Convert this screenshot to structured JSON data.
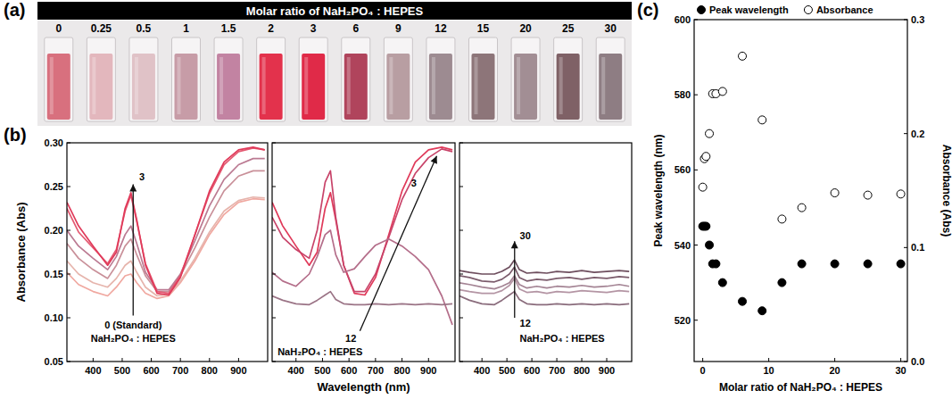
{
  "chart_data": [
    {
      "type": "swatch",
      "panel": "(a)",
      "title": "Molar ratio of NaH₂PO₄ : HEPES",
      "categories": [
        "0",
        "0.25",
        "0.5",
        "1",
        "1.5",
        "2",
        "3",
        "6",
        "9",
        "12",
        "15",
        "20",
        "25",
        "30"
      ],
      "colors": [
        "#d8707e",
        "#e3b7bd",
        "#e0c2c7",
        "#c79ca7",
        "#c283a2",
        "#e3324c",
        "#e02a48",
        "#b0445c",
        "#b89ea2",
        "#9d8b91",
        "#8d7579",
        "#a28e94",
        "#7f6166",
        "#8e7d83"
      ]
    },
    {
      "type": "line",
      "panel": "(b)",
      "y_label": "Absorbance (Abs)",
      "annotations": [
        "3",
        "0 (Standard)",
        "NaH₂PO₄ : HEPES"
      ],
      "x": [
        310,
        350,
        400,
        450,
        480,
        510,
        530,
        550,
        580,
        620,
        660,
        700,
        750,
        800,
        850,
        900,
        950,
        990
      ],
      "xlim": [
        310,
        1000
      ],
      "xticks": [
        400,
        500,
        600,
        700,
        800,
        900
      ],
      "ylim": [
        0.05,
        0.3
      ],
      "yticks": [
        0.05,
        {
          "value": 0.1,
          "label": "0.10"
        },
        0.15,
        {
          "value": 0.2,
          "label": "0.20"
        },
        0.25,
        {
          "value": 0.3,
          "label": "0.30"
        }
      ],
      "series": [
        {
          "color": "#f0a8a0",
          "values": [
            0.152,
            0.138,
            0.13,
            0.125,
            0.135,
            0.148,
            0.15,
            0.14,
            0.128,
            0.122,
            0.125,
            0.14,
            0.165,
            0.195,
            0.218,
            0.232,
            0.236,
            0.235
          ]
        },
        {
          "color": "#e6b4ac",
          "values": [
            0.165,
            0.15,
            0.14,
            0.135,
            0.145,
            0.16,
            0.165,
            0.152,
            0.135,
            0.125,
            0.127,
            0.142,
            0.168,
            0.198,
            0.222,
            0.234,
            0.238,
            0.237
          ]
        },
        {
          "color": "#c99099",
          "values": [
            0.185,
            0.168,
            0.155,
            0.145,
            0.16,
            0.182,
            0.19,
            0.172,
            0.148,
            0.13,
            0.13,
            0.148,
            0.18,
            0.215,
            0.245,
            0.262,
            0.268,
            0.268
          ]
        },
        {
          "color": "#bb7a92",
          "values": [
            0.2,
            0.182,
            0.168,
            0.155,
            0.17,
            0.195,
            0.205,
            0.185,
            0.152,
            0.132,
            0.132,
            0.15,
            0.188,
            0.228,
            0.258,
            0.275,
            0.282,
            0.282
          ]
        },
        {
          "color": "#e45a72",
          "values": [
            0.225,
            0.198,
            0.18,
            0.162,
            0.178,
            0.222,
            0.24,
            0.21,
            0.162,
            0.13,
            0.128,
            0.148,
            0.195,
            0.242,
            0.275,
            0.29,
            0.294,
            0.292
          ]
        },
        {
          "color": "#e03a5a",
          "values": [
            0.232,
            0.205,
            0.182,
            0.16,
            0.175,
            0.225,
            0.243,
            0.212,
            0.16,
            0.128,
            0.126,
            0.146,
            0.195,
            0.245,
            0.278,
            0.292,
            0.295,
            0.292
          ]
        }
      ]
    },
    {
      "type": "line",
      "x_label": "Wavelength (nm)",
      "tick_labels": "x",
      "annotations": [
        "3",
        "12",
        "NaH₂PO₄ : HEPES"
      ],
      "x": [
        310,
        350,
        400,
        450,
        480,
        510,
        530,
        550,
        580,
        620,
        660,
        700,
        750,
        800,
        850,
        900,
        950,
        990
      ],
      "xlim": [
        310,
        1000
      ],
      "xticks": [
        400,
        500,
        600,
        700,
        800,
        900
      ],
      "ylim": [
        0.05,
        0.3
      ],
      "yticks": [
        0.05,
        {
          "value": 0.1,
          "label": "0.10"
        },
        0.15,
        {
          "value": 0.2,
          "label": "0.20"
        },
        0.25,
        {
          "value": 0.3,
          "label": "0.30"
        }
      ],
      "series": [
        {
          "color": "#e03a5a",
          "values": [
            0.232,
            0.205,
            0.182,
            0.16,
            0.175,
            0.225,
            0.243,
            0.212,
            0.16,
            0.128,
            0.126,
            0.146,
            0.195,
            0.245,
            0.278,
            0.292,
            0.295,
            0.292
          ]
        },
        {
          "color": "#c8446a",
          "values": [
            0.215,
            0.192,
            0.178,
            0.168,
            0.2,
            0.255,
            0.268,
            0.215,
            0.16,
            0.13,
            0.13,
            0.15,
            0.192,
            0.235,
            0.265,
            0.283,
            0.293,
            0.29
          ]
        },
        {
          "color": "#b46e8a",
          "values": [
            0.152,
            0.142,
            0.136,
            0.15,
            0.17,
            0.195,
            0.2,
            0.172,
            0.152,
            0.156,
            0.17,
            0.183,
            0.19,
            0.182,
            0.17,
            0.155,
            0.125,
            0.092
          ]
        },
        {
          "color": "#9b7486",
          "values": [
            0.125,
            0.12,
            0.116,
            0.115,
            0.12,
            0.126,
            0.13,
            0.121,
            0.116,
            0.115,
            0.115,
            0.116,
            0.115,
            0.116,
            0.115,
            0.116,
            0.115,
            0.116
          ]
        }
      ]
    },
    {
      "type": "line",
      "tick_labels": "x",
      "annotations": [
        "30",
        "12",
        "NaH₂PO₄ : HEPES"
      ],
      "x": [
        310,
        350,
        400,
        450,
        480,
        510,
        530,
        550,
        580,
        620,
        660,
        700,
        750,
        800,
        850,
        900,
        950,
        990
      ],
      "xlim": [
        310,
        1000
      ],
      "xticks": [
        400,
        500,
        600,
        700,
        800,
        900
      ],
      "ylim": [
        0.05,
        0.3
      ],
      "yticks": [
        0.05,
        {
          "value": 0.1,
          "label": "0.10"
        },
        0.15,
        {
          "value": 0.2,
          "label": "0.20"
        },
        0.25,
        {
          "value": 0.3,
          "label": "0.30"
        }
      ],
      "series": [
        {
          "color": "#8a6c7c",
          "values": [
            0.125,
            0.12,
            0.116,
            0.115,
            0.12,
            0.126,
            0.13,
            0.121,
            0.116,
            0.115,
            0.115,
            0.116,
            0.115,
            0.116,
            0.115,
            0.116,
            0.115,
            0.116
          ]
        },
        {
          "color": "#a48494",
          "values": [
            0.14,
            0.138,
            0.135,
            0.133,
            0.136,
            0.14,
            0.148,
            0.138,
            0.134,
            0.136,
            0.134,
            0.136,
            0.135,
            0.137,
            0.135,
            0.136,
            0.138,
            0.136
          ]
        },
        {
          "color": "#7c5c6c",
          "values": [
            0.148,
            0.146,
            0.142,
            0.141,
            0.144,
            0.15,
            0.158,
            0.146,
            0.142,
            0.144,
            0.143,
            0.145,
            0.146,
            0.144,
            0.146,
            0.145,
            0.147,
            0.146
          ]
        },
        {
          "color": "#b495a4",
          "values": [
            0.132,
            0.13,
            0.128,
            0.128,
            0.131,
            0.137,
            0.145,
            0.133,
            0.129,
            0.13,
            0.128,
            0.13,
            0.129,
            0.131,
            0.13,
            0.129,
            0.131,
            0.13
          ]
        },
        {
          "color": "#6e4e5e",
          "values": [
            0.154,
            0.152,
            0.15,
            0.15,
            0.153,
            0.158,
            0.166,
            0.155,
            0.151,
            0.152,
            0.151,
            0.153,
            0.152,
            0.154,
            0.152,
            0.153,
            0.154,
            0.153
          ]
        }
      ]
    },
    {
      "type": "scatter",
      "panel": "(c)",
      "legend": "top",
      "x_label": "Molar ratio of NaH₂PO₄ : HEPES",
      "y_label": "Peak wavelength (nm)",
      "y2_label": "Absorbance (Abs)",
      "x": [
        0,
        0.25,
        0.5,
        1,
        1.5,
        2,
        3,
        6,
        9,
        12,
        15,
        20,
        25,
        30
      ],
      "xlim": [
        -1.3,
        31
      ],
      "xticks": [
        0,
        10,
        20,
        30
      ],
      "ylim": [
        509,
        600
      ],
      "yticks": [
        520,
        540,
        560,
        580,
        600
      ],
      "y2lim": [
        0,
        0.3
      ],
      "y2ticks": [
        {
          "value": 0,
          "label": "0.0"
        },
        0.1,
        0.2,
        0.3
      ],
      "series": [
        {
          "name": "Peak wavelength",
          "color": "#000000",
          "marker": "circle",
          "values": [
            545,
            545,
            545,
            540,
            535,
            535,
            530,
            525,
            522.5,
            530,
            535,
            535,
            535,
            535
          ]
        },
        {
          "name": "Absorbance",
          "color": "#000000",
          "marker": "circle-open",
          "axis": "y2",
          "values": [
            0.153,
            0.178,
            0.18,
            0.2,
            0.235,
            0.235,
            0.237,
            0.268,
            0.212,
            0.125,
            0.135,
            0.148,
            0.146,
            0.147
          ]
        }
      ]
    }
  ]
}
